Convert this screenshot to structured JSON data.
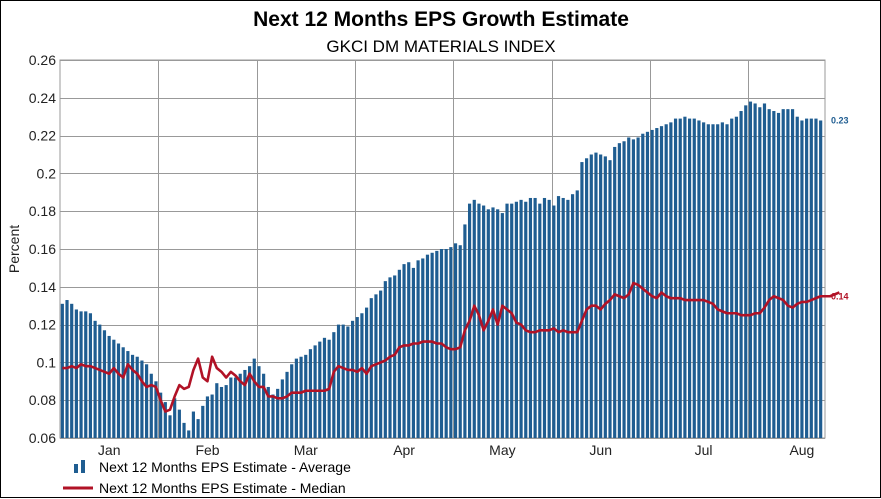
{
  "chart_data": {
    "type": "bar",
    "title": "Next 12 Months EPS Growth Estimate",
    "subtitle": "GKCI DM MATERIALS INDEX",
    "ylabel": "Percent",
    "xlabel": "",
    "ylim": [
      0.06,
      0.26
    ],
    "yticks": [
      0.06,
      0.08,
      0.1,
      0.12,
      0.14,
      0.16,
      0.18,
      0.2,
      0.22,
      0.24,
      0.26
    ],
    "ytick_labels": [
      "0.06",
      "0.08",
      "0.1",
      "0.12",
      "0.14",
      "0.16",
      "0.18",
      "0.2",
      "0.22",
      "0.24",
      "0.26"
    ],
    "month_labels": [
      {
        "label": "Jan",
        "index": 10
      },
      {
        "label": "Feb",
        "index": 31
      },
      {
        "label": "Mar",
        "index": 52
      },
      {
        "label": "Apr",
        "index": 73
      },
      {
        "label": "May",
        "index": 94
      },
      {
        "label": "Jun",
        "index": 115
      },
      {
        "label": "Jul",
        "index": 137
      },
      {
        "label": "Aug",
        "index": 158
      }
    ],
    "month_grid_indices": [
      21,
      42,
      63,
      84,
      105,
      126,
      147
    ],
    "grid": true,
    "legend_position": "bottom-left",
    "colors": {
      "average": "#1f5d91",
      "median": "#b11226",
      "grid": "#999999"
    },
    "series": [
      {
        "name": "Next 12 Months EPS Estimate - Average",
        "type": "bar",
        "end_label": "0.23",
        "values": [
          0.131,
          0.133,
          0.131,
          0.128,
          0.127,
          0.127,
          0.126,
          0.122,
          0.12,
          0.117,
          0.114,
          0.112,
          0.11,
          0.108,
          0.106,
          0.104,
          0.103,
          0.101,
          0.099,
          0.094,
          0.09,
          0.084,
          0.079,
          0.072,
          0.081,
          0.075,
          0.068,
          0.064,
          0.074,
          0.07,
          0.077,
          0.082,
          0.083,
          0.089,
          0.087,
          0.088,
          0.092,
          0.092,
          0.094,
          0.096,
          0.098,
          0.102,
          0.098,
          0.094,
          0.087,
          0.083,
          0.086,
          0.091,
          0.095,
          0.099,
          0.102,
          0.103,
          0.104,
          0.107,
          0.109,
          0.111,
          0.113,
          0.112,
          0.116,
          0.12,
          0.12,
          0.119,
          0.122,
          0.124,
          0.126,
          0.129,
          0.134,
          0.136,
          0.138,
          0.143,
          0.145,
          0.146,
          0.149,
          0.152,
          0.153,
          0.15,
          0.154,
          0.155,
          0.157,
          0.158,
          0.159,
          0.16,
          0.16,
          0.161,
          0.163,
          0.162,
          0.173,
          0.184,
          0.186,
          0.184,
          0.183,
          0.181,
          0.182,
          0.181,
          0.179,
          0.184,
          0.184,
          0.185,
          0.186,
          0.185,
          0.187,
          0.187,
          0.184,
          0.187,
          0.186,
          0.183,
          0.188,
          0.187,
          0.186,
          0.189,
          0.191,
          0.206,
          0.208,
          0.21,
          0.211,
          0.21,
          0.209,
          0.207,
          0.214,
          0.216,
          0.217,
          0.219,
          0.218,
          0.219,
          0.221,
          0.222,
          0.223,
          0.224,
          0.225,
          0.226,
          0.227,
          0.229,
          0.229,
          0.23,
          0.229,
          0.229,
          0.228,
          0.227,
          0.226,
          0.226,
          0.226,
          0.227,
          0.226,
          0.229,
          0.23,
          0.233,
          0.236,
          0.238,
          0.237,
          0.235,
          0.237,
          0.234,
          0.233,
          0.232,
          0.234,
          0.234,
          0.234,
          0.23,
          0.228,
          0.229,
          0.229,
          0.229,
          0.228
        ]
      },
      {
        "name": "Next 12 Months EPS Estimate - Median",
        "type": "line",
        "end_label": "0.14",
        "values": [
          0.097,
          0.097,
          0.098,
          0.097,
          0.099,
          0.098,
          0.098,
          0.097,
          0.096,
          0.095,
          0.094,
          0.097,
          0.094,
          0.092,
          0.099,
          0.096,
          0.094,
          0.09,
          0.087,
          0.088,
          0.087,
          0.08,
          0.074,
          0.075,
          0.082,
          0.088,
          0.086,
          0.087,
          0.096,
          0.102,
          0.092,
          0.09,
          0.103,
          0.097,
          0.095,
          0.092,
          0.095,
          0.093,
          0.09,
          0.088,
          0.094,
          0.09,
          0.087,
          0.087,
          0.082,
          0.082,
          0.081,
          0.081,
          0.082,
          0.084,
          0.084,
          0.084,
          0.085,
          0.085,
          0.085,
          0.085,
          0.085,
          0.086,
          0.095,
          0.098,
          0.097,
          0.096,
          0.096,
          0.095,
          0.097,
          0.094,
          0.098,
          0.099,
          0.1,
          0.101,
          0.103,
          0.104,
          0.108,
          0.109,
          0.109,
          0.11,
          0.11,
          0.111,
          0.111,
          0.111,
          0.11,
          0.11,
          0.108,
          0.107,
          0.107,
          0.108,
          0.117,
          0.122,
          0.13,
          0.125,
          0.117,
          0.122,
          0.128,
          0.12,
          0.13,
          0.128,
          0.126,
          0.121,
          0.12,
          0.117,
          0.116,
          0.116,
          0.117,
          0.117,
          0.117,
          0.118,
          0.116,
          0.117,
          0.116,
          0.116,
          0.116,
          0.122,
          0.128,
          0.13,
          0.13,
          0.128,
          0.131,
          0.133,
          0.136,
          0.135,
          0.134,
          0.136,
          0.142,
          0.141,
          0.139,
          0.137,
          0.135,
          0.134,
          0.137,
          0.135,
          0.134,
          0.134,
          0.134,
          0.133,
          0.133,
          0.133,
          0.133,
          0.133,
          0.132,
          0.131,
          0.128,
          0.127,
          0.126,
          0.126,
          0.126,
          0.125,
          0.125,
          0.125,
          0.126,
          0.126,
          0.129,
          0.133,
          0.135,
          0.134,
          0.133,
          0.13,
          0.129,
          0.131,
          0.132,
          0.132,
          0.133,
          0.134,
          0.135,
          0.135,
          0.135,
          0.136,
          0.137
        ]
      }
    ]
  }
}
